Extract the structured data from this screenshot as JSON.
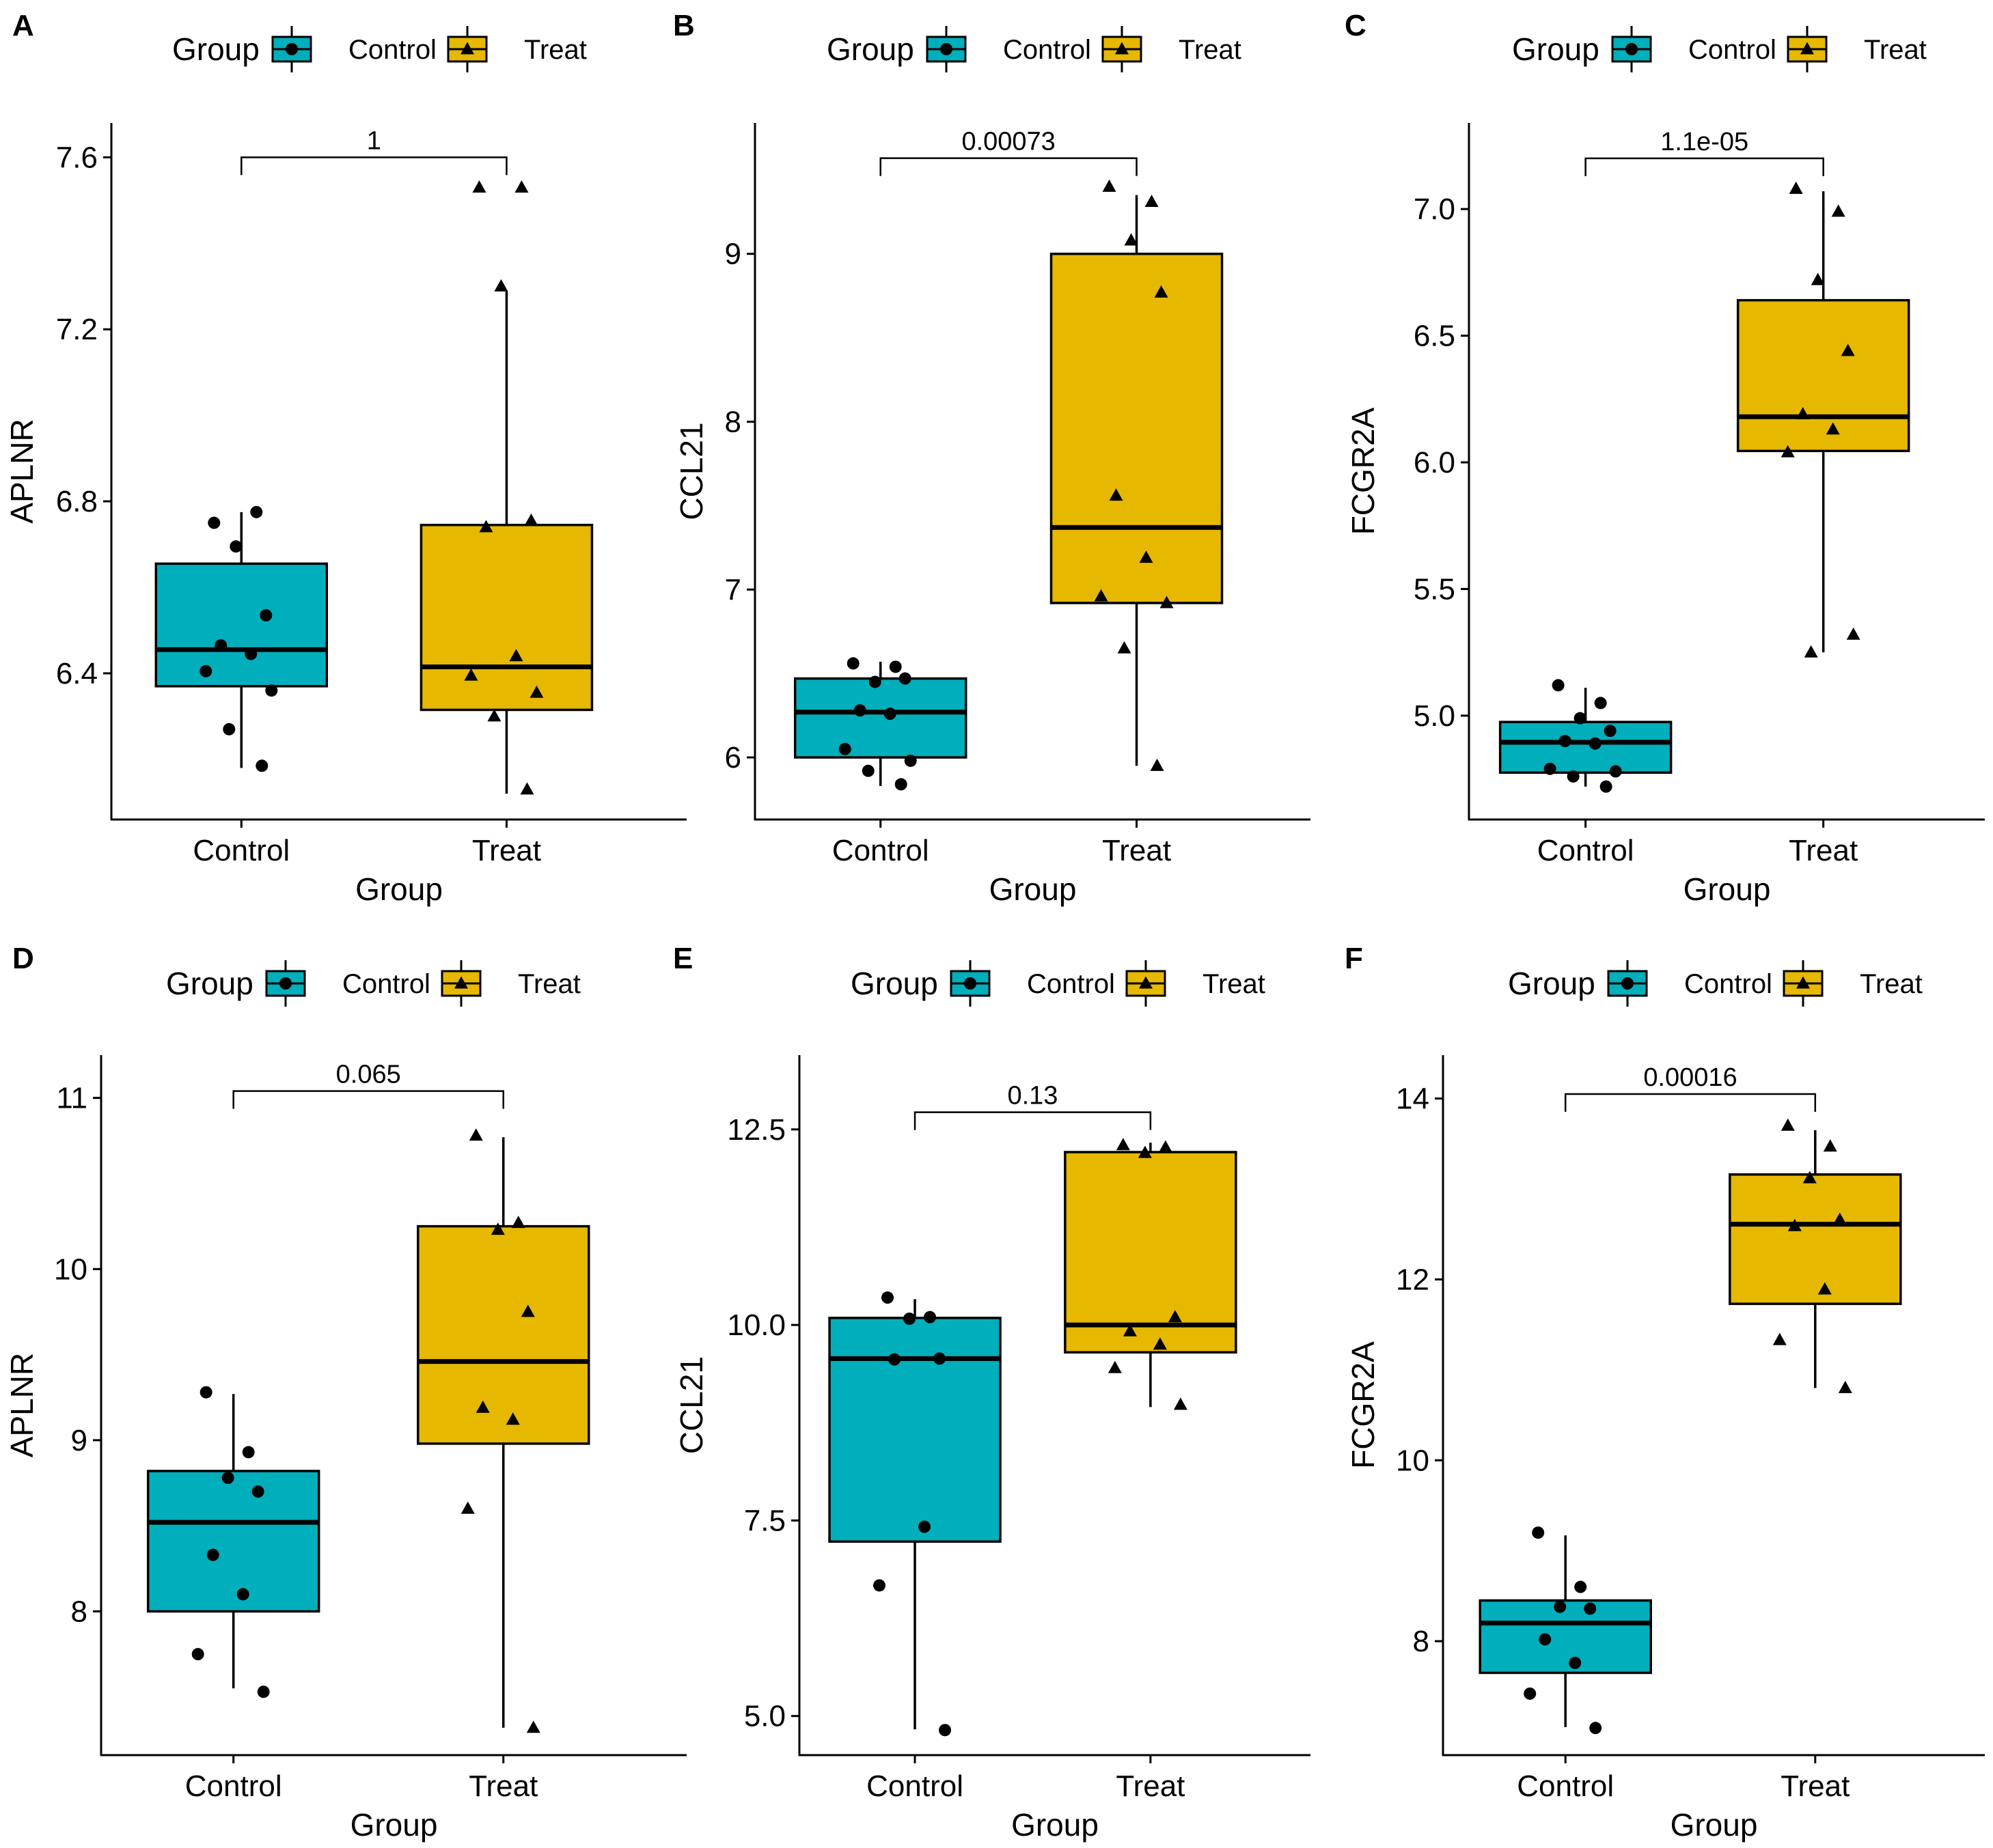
{
  "colors": {
    "control": "#00AFBB",
    "treat": "#E7B800",
    "ink": "#000000"
  },
  "legend": {
    "title": "Group",
    "items": [
      "Control",
      "Treat"
    ]
  },
  "chart_data": [
    {
      "letter": "A",
      "type": "box",
      "title": "",
      "xlabel": "Group",
      "ylabel": "APLNR",
      "ylim": [
        6.06,
        7.68
      ],
      "yticks": [
        6.4,
        6.8,
        7.2,
        7.6
      ],
      "tick_decimals": 1,
      "categories": [
        "Control",
        "Treat"
      ],
      "pvalue": "1",
      "pvalue_y": 7.6,
      "boxes": [
        {
          "group": "Control",
          "min": 6.18,
          "q1": 6.37,
          "median": 6.455,
          "q3": 6.655,
          "max": 6.775,
          "points": [
            6.75,
            6.775,
            6.695,
            6.535,
            6.465,
            6.445,
            6.405,
            6.36,
            6.27,
            6.185
          ]
        },
        {
          "group": "Treat",
          "min": 6.12,
          "q1": 6.315,
          "median": 6.415,
          "q3": 6.745,
          "max": 7.29,
          "points": [
            7.53,
            7.53,
            7.3,
            6.755,
            6.74,
            6.44,
            6.395,
            6.355,
            6.3,
            6.13
          ]
        }
      ]
    },
    {
      "letter": "B",
      "type": "box",
      "title": "",
      "xlabel": "Group",
      "ylabel": "CCL21",
      "ylim": [
        5.63,
        9.78
      ],
      "yticks": [
        6,
        7,
        8,
        9
      ],
      "tick_decimals": 0,
      "categories": [
        "Control",
        "Treat"
      ],
      "pvalue": "0.00073",
      "pvalue_y": 9.57,
      "boxes": [
        {
          "group": "Control",
          "min": 5.83,
          "q1": 6.0,
          "median": 6.27,
          "q3": 6.47,
          "max": 6.57,
          "points": [
            6.56,
            6.54,
            6.45,
            6.47,
            6.28,
            6.26,
            6.05,
            5.98,
            5.92,
            5.84
          ]
        },
        {
          "group": "Treat",
          "min": 5.95,
          "q1": 6.92,
          "median": 7.37,
          "q3": 9.0,
          "max": 9.35,
          "points": [
            9.4,
            9.31,
            9.08,
            8.77,
            7.56,
            7.19,
            6.96,
            6.92,
            6.65,
            5.95
          ]
        }
      ]
    },
    {
      "letter": "C",
      "type": "box",
      "title": "",
      "xlabel": "Group",
      "ylabel": "FCGR2A",
      "ylim": [
        4.59,
        7.34
      ],
      "yticks": [
        5.0,
        5.5,
        6.0,
        6.5,
        7.0
      ],
      "tick_decimals": 1,
      "categories": [
        "Control",
        "Treat"
      ],
      "pvalue": "1.1e-05",
      "pvalue_y": 7.2,
      "boxes": [
        {
          "group": "Control",
          "min": 4.72,
          "q1": 4.775,
          "median": 4.895,
          "q3": 4.975,
          "max": 5.11,
          "points": [
            5.12,
            5.05,
            4.99,
            4.94,
            4.9,
            4.89,
            4.79,
            4.78,
            4.76,
            4.72
          ]
        },
        {
          "group": "Treat",
          "min": 5.25,
          "q1": 6.045,
          "median": 6.18,
          "q3": 6.64,
          "max": 7.07,
          "points": [
            7.08,
            6.99,
            6.72,
            6.44,
            6.19,
            6.13,
            6.04,
            5.32,
            5.25
          ]
        }
      ]
    },
    {
      "letter": "D",
      "type": "box",
      "title": "",
      "xlabel": "Group",
      "ylabel": "APLNR",
      "ylim": [
        7.16,
        11.25
      ],
      "yticks": [
        8,
        9,
        10,
        11
      ],
      "tick_decimals": 0,
      "categories": [
        "Control",
        "Treat"
      ],
      "pvalue": "0.065",
      "pvalue_y": 11.04,
      "boxes": [
        {
          "group": "Control",
          "min": 7.55,
          "q1": 8.0,
          "median": 8.52,
          "q3": 8.82,
          "max": 9.27,
          "points": [
            9.28,
            8.93,
            8.78,
            8.7,
            8.33,
            8.1,
            7.75,
            7.53
          ]
        },
        {
          "group": "Treat",
          "min": 7.32,
          "q1": 8.98,
          "median": 9.46,
          "q3": 10.25,
          "max": 10.77,
          "points": [
            10.78,
            10.27,
            10.23,
            9.75,
            9.19,
            9.12,
            8.6,
            7.32
          ]
        }
      ]
    },
    {
      "letter": "E",
      "type": "box",
      "title": "",
      "xlabel": "Group",
      "ylabel": "CCL21",
      "ylim": [
        4.5,
        13.45
      ],
      "yticks": [
        5.0,
        7.5,
        10.0,
        12.5
      ],
      "tick_decimals": 1,
      "categories": [
        "Control",
        "Treat"
      ],
      "pvalue": "0.13",
      "pvalue_y": 12.72,
      "boxes": [
        {
          "group": "Control",
          "min": 4.83,
          "q1": 7.23,
          "median": 9.57,
          "q3": 10.09,
          "max": 10.33,
          "points": [
            10.35,
            10.1,
            10.08,
            9.57,
            9.56,
            7.42,
            6.67,
            4.82
          ]
        },
        {
          "group": "Treat",
          "min": 8.95,
          "q1": 9.65,
          "median": 10.0,
          "q3": 12.21,
          "max": 12.33,
          "points": [
            12.3,
            12.27,
            12.2,
            10.1,
            9.92,
            9.75,
            9.45,
            8.98
          ]
        }
      ]
    },
    {
      "letter": "F",
      "type": "box",
      "title": "",
      "xlabel": "Group",
      "ylabel": "FCGR2A",
      "ylim": [
        6.74,
        14.48
      ],
      "yticks": [
        8,
        10,
        12,
        14
      ],
      "tick_decimals": 0,
      "categories": [
        "Control",
        "Treat"
      ],
      "pvalue": "0.00016",
      "pvalue_y": 14.05,
      "boxes": [
        {
          "group": "Control",
          "min": 7.05,
          "q1": 7.65,
          "median": 8.2,
          "q3": 8.45,
          "max": 9.17,
          "points": [
            9.2,
            8.6,
            8.38,
            8.36,
            8.02,
            7.76,
            7.42,
            7.04
          ]
        },
        {
          "group": "Treat",
          "min": 10.8,
          "q1": 11.73,
          "median": 12.61,
          "q3": 13.16,
          "max": 13.65,
          "points": [
            13.7,
            13.47,
            13.12,
            12.66,
            12.59,
            11.89,
            11.33,
            10.8
          ]
        }
      ]
    }
  ]
}
